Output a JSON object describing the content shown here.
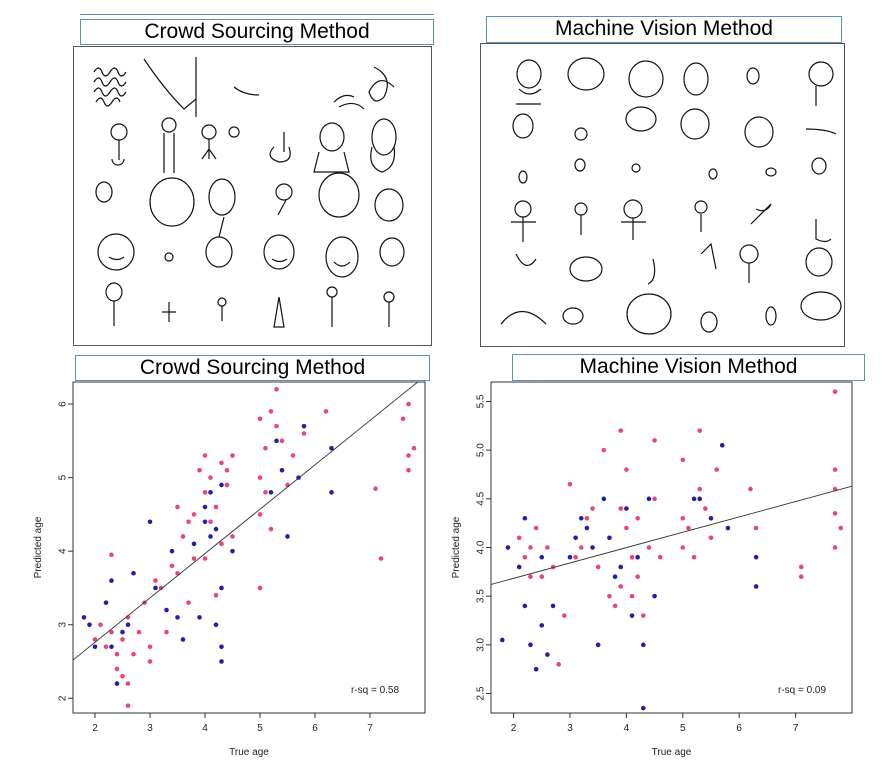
{
  "panels": {
    "top_left_title": "Crowd Sourcing Method",
    "top_right_title": "Machine Vision Method",
    "bottom_left_title": "Crowd Sourcing Method",
    "bottom_right_title": "Machine Vision Method"
  },
  "colors": {
    "pink": "#e8457a",
    "blue": "#1f1fa8",
    "frame": "#555555",
    "title_border": "#5b8fc9"
  },
  "chart_data": [
    {
      "type": "scatter",
      "title": "Crowd Sourcing Method",
      "xlabel": "True age",
      "ylabel": "Predicted age",
      "xlim": [
        1.6,
        8.0
      ],
      "ylim": [
        1.8,
        6.3
      ],
      "xticks": [
        2,
        3,
        4,
        5,
        6,
        7
      ],
      "yticks": [
        2,
        3,
        4,
        5,
        6
      ],
      "annotation": "r-sq = 0.58",
      "fit_line": {
        "x": [
          1.6,
          8.0
        ],
        "y": [
          2.52,
          6.38
        ]
      },
      "series": [
        {
          "color": "pink",
          "points": [
            [
              2.0,
              2.8
            ],
            [
              2.1,
              3.0
            ],
            [
              2.2,
              2.7
            ],
            [
              2.3,
              2.9
            ],
            [
              2.3,
              3.95
            ],
            [
              2.4,
              2.6
            ],
            [
              2.4,
              2.4
            ],
            [
              2.5,
              2.8
            ],
            [
              2.5,
              2.3
            ],
            [
              2.6,
              2.2
            ],
            [
              2.6,
              1.9
            ],
            [
              2.6,
              3.1
            ],
            [
              2.7,
              2.6
            ],
            [
              2.8,
              2.9
            ],
            [
              2.9,
              3.3
            ],
            [
              3.0,
              2.7
            ],
            [
              3.0,
              2.5
            ],
            [
              3.1,
              3.6
            ],
            [
              3.2,
              3.5
            ],
            [
              3.3,
              2.9
            ],
            [
              3.4,
              3.8
            ],
            [
              3.5,
              4.6
            ],
            [
              3.5,
              3.7
            ],
            [
              3.6,
              4.2
            ],
            [
              3.7,
              4.4
            ],
            [
              3.7,
              3.3
            ],
            [
              3.8,
              4.5
            ],
            [
              3.8,
              3.9
            ],
            [
              3.9,
              5.1
            ],
            [
              4.0,
              5.3
            ],
            [
              4.0,
              4.8
            ],
            [
              4.0,
              3.9
            ],
            [
              4.1,
              5.0
            ],
            [
              4.1,
              4.4
            ],
            [
              4.2,
              4.6
            ],
            [
              4.2,
              3.4
            ],
            [
              4.3,
              5.2
            ],
            [
              4.3,
              4.1
            ],
            [
              4.4,
              4.9
            ],
            [
              4.4,
              5.1
            ],
            [
              4.5,
              4.2
            ],
            [
              4.5,
              5.3
            ],
            [
              5.0,
              5.8
            ],
            [
              5.0,
              5.0
            ],
            [
              5.0,
              4.5
            ],
            [
              5.0,
              3.5
            ],
            [
              5.1,
              5.4
            ],
            [
              5.1,
              4.8
            ],
            [
              5.2,
              4.3
            ],
            [
              5.2,
              5.9
            ],
            [
              5.3,
              6.2
            ],
            [
              5.3,
              5.7
            ],
            [
              5.4,
              5.5
            ],
            [
              5.5,
              4.9
            ],
            [
              5.6,
              5.3
            ],
            [
              5.8,
              5.6
            ],
            [
              6.2,
              5.9
            ],
            [
              7.1,
              4.85
            ],
            [
              7.2,
              3.9
            ],
            [
              7.6,
              5.8
            ],
            [
              7.7,
              5.3
            ],
            [
              7.7,
              5.1
            ],
            [
              7.7,
              6.0
            ],
            [
              7.8,
              5.4
            ]
          ]
        },
        {
          "color": "blue",
          "points": [
            [
              1.8,
              3.1
            ],
            [
              1.9,
              3.0
            ],
            [
              2.0,
              2.7
            ],
            [
              2.2,
              3.3
            ],
            [
              2.3,
              3.6
            ],
            [
              2.3,
              2.7
            ],
            [
              2.4,
              2.2
            ],
            [
              2.5,
              2.9
            ],
            [
              2.6,
              3.0
            ],
            [
              2.7,
              3.7
            ],
            [
              3.0,
              4.4
            ],
            [
              3.1,
              3.5
            ],
            [
              3.3,
              3.2
            ],
            [
              3.4,
              4.0
            ],
            [
              3.5,
              3.1
            ],
            [
              3.6,
              2.8
            ],
            [
              3.8,
              4.1
            ],
            [
              3.9,
              3.1
            ],
            [
              4.0,
              4.6
            ],
            [
              4.0,
              4.4
            ],
            [
              4.1,
              4.8
            ],
            [
              4.1,
              4.2
            ],
            [
              4.2,
              3.0
            ],
            [
              4.2,
              4.3
            ],
            [
              4.3,
              4.9
            ],
            [
              4.3,
              3.5
            ],
            [
              4.3,
              2.7
            ],
            [
              4.3,
              2.5
            ],
            [
              4.5,
              4.0
            ],
            [
              5.2,
              4.8
            ],
            [
              5.3,
              5.5
            ],
            [
              5.4,
              5.1
            ],
            [
              5.5,
              4.2
            ],
            [
              5.7,
              5.0
            ],
            [
              5.8,
              5.7
            ],
            [
              6.3,
              4.8
            ],
            [
              6.3,
              5.4
            ]
          ]
        }
      ]
    },
    {
      "type": "scatter",
      "title": "Machine Vision Method",
      "xlabel": "True age",
      "ylabel": "Predicted age",
      "xlim": [
        1.6,
        8.0
      ],
      "ylim": [
        2.3,
        5.7
      ],
      "xticks": [
        2,
        3,
        4,
        5,
        6,
        7
      ],
      "yticks": [
        2.5,
        3.0,
        3.5,
        4.0,
        4.5,
        5.0,
        5.5
      ],
      "annotation": "r-sq = 0.09",
      "fit_line": {
        "x": [
          1.6,
          8.0
        ],
        "y": [
          3.62,
          4.63
        ]
      },
      "series": [
        {
          "color": "pink",
          "points": [
            [
              2.1,
              4.1
            ],
            [
              2.2,
              3.9
            ],
            [
              2.3,
              3.7
            ],
            [
              2.3,
              4.0
            ],
            [
              2.4,
              4.2
            ],
            [
              2.5,
              3.7
            ],
            [
              2.6,
              4.0
            ],
            [
              2.7,
              3.8
            ],
            [
              2.8,
              2.8
            ],
            [
              2.9,
              3.3
            ],
            [
              3.0,
              4.65
            ],
            [
              3.1,
              3.9
            ],
            [
              3.2,
              4.0
            ],
            [
              3.3,
              4.3
            ],
            [
              3.4,
              4.4
            ],
            [
              3.5,
              3.8
            ],
            [
              3.6,
              5.0
            ],
            [
              3.7,
              3.5
            ],
            [
              3.8,
              3.4
            ],
            [
              3.9,
              5.2
            ],
            [
              3.9,
              4.4
            ],
            [
              3.9,
              3.6
            ],
            [
              4.0,
              4.8
            ],
            [
              4.0,
              4.2
            ],
            [
              4.1,
              3.5
            ],
            [
              4.1,
              3.9
            ],
            [
              4.2,
              4.3
            ],
            [
              4.2,
              3.7
            ],
            [
              4.3,
              3.3
            ],
            [
              4.4,
              4.0
            ],
            [
              4.5,
              5.1
            ],
            [
              4.5,
              4.5
            ],
            [
              4.6,
              3.9
            ],
            [
              5.0,
              4.9
            ],
            [
              5.0,
              4.3
            ],
            [
              5.0,
              4.0
            ],
            [
              5.1,
              4.2
            ],
            [
              5.2,
              3.9
            ],
            [
              5.3,
              5.2
            ],
            [
              5.3,
              4.6
            ],
            [
              5.4,
              4.4
            ],
            [
              5.5,
              4.1
            ],
            [
              5.6,
              4.8
            ],
            [
              6.2,
              4.6
            ],
            [
              6.3,
              4.2
            ],
            [
              7.1,
              3.8
            ],
            [
              7.1,
              3.7
            ],
            [
              7.7,
              5.6
            ],
            [
              7.7,
              4.8
            ],
            [
              7.7,
              4.6
            ],
            [
              7.7,
              4.35
            ],
            [
              7.7,
              4.0
            ],
            [
              7.8,
              4.2
            ]
          ]
        },
        {
          "color": "blue",
          "points": [
            [
              1.8,
              3.05
            ],
            [
              1.9,
              4.0
            ],
            [
              2.1,
              3.8
            ],
            [
              2.2,
              4.3
            ],
            [
              2.2,
              3.4
            ],
            [
              2.3,
              3.0
            ],
            [
              2.4,
              2.75
            ],
            [
              2.5,
              3.2
            ],
            [
              2.5,
              3.9
            ],
            [
              2.6,
              2.9
            ],
            [
              2.7,
              3.4
            ],
            [
              3.0,
              3.9
            ],
            [
              3.1,
              4.1
            ],
            [
              3.2,
              4.3
            ],
            [
              3.3,
              4.2
            ],
            [
              3.4,
              4.0
            ],
            [
              3.5,
              3.0
            ],
            [
              3.6,
              4.5
            ],
            [
              3.7,
              4.1
            ],
            [
              3.8,
              3.7
            ],
            [
              3.9,
              3.8
            ],
            [
              4.0,
              4.4
            ],
            [
              4.1,
              3.3
            ],
            [
              4.2,
              3.9
            ],
            [
              4.3,
              3.0
            ],
            [
              4.3,
              2.35
            ],
            [
              4.4,
              4.5
            ],
            [
              4.5,
              3.5
            ],
            [
              5.2,
              4.5
            ],
            [
              5.3,
              4.5
            ],
            [
              5.5,
              4.3
            ],
            [
              5.7,
              5.05
            ],
            [
              5.8,
              4.2
            ],
            [
              6.3,
              3.6
            ],
            [
              6.3,
              3.9
            ]
          ]
        }
      ]
    }
  ]
}
